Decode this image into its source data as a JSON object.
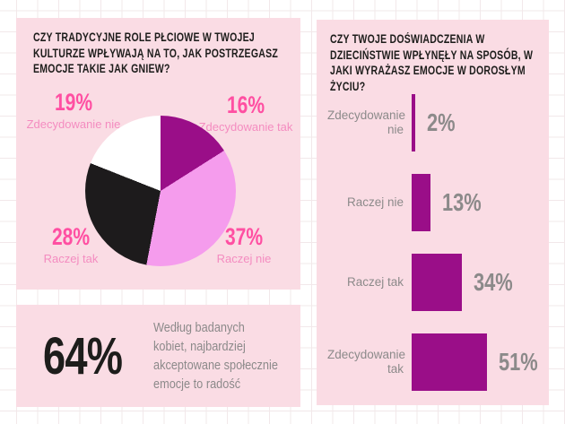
{
  "colors": {
    "canvas_bg": "#ffffff",
    "grid_line": "#f2e8ea",
    "panel_bg": "#fadce4",
    "accent_hot_pink": "#ff4fa2",
    "accent_light_pink_text": "#f48cc0",
    "accent_magenta": "#9a0e88",
    "pie_light_pink": "#f59ced",
    "pie_black": "#1d1b1c",
    "pie_white": "#ffffff",
    "gray_text": "#8c8a8a",
    "title_black": "#1d1d1b"
  },
  "left_panel": {
    "title": "CZY TRADYCYJNE ROLE PŁCIOWE W TWOJEJ KULTURZE WPŁYWAJĄ NA TO, JAK POSTRZEGASZ EMOCJE TAKIE JAK GNIEW?",
    "slices": [
      {
        "pct_label": "19%",
        "label": "Zdecydowanie nie"
      },
      {
        "pct_label": "16%",
        "label": "Zdecydowanie tak"
      },
      {
        "pct_label": "28%",
        "label": "Raczej tak"
      },
      {
        "pct_label": "37%",
        "label": "Raczej nie"
      }
    ]
  },
  "stat_panel": {
    "value": "64%",
    "text": "Według badanych kobiet, najbardziej akceptowane społecznie emocje to radość"
  },
  "right_panel": {
    "title": "CZY TWOJE DOŚWIADCZENIA W DZIECIŃSTWIE WPŁYNĘŁY NA SPOSÓB, W JAKI WYRAŻASZ EMOCJE W DOROSŁYM ŻYCIU?",
    "bars": [
      {
        "label": "Zdecydowanie nie",
        "value_label": "2%",
        "pct": 2
      },
      {
        "label": "Raczej nie",
        "value_label": "13%",
        "pct": 13
      },
      {
        "label": "Raczej tak",
        "value_label": "34%",
        "pct": 34
      },
      {
        "label": "Zdecydowanie tak",
        "value_label": "51%",
        "pct": 51
      }
    ]
  },
  "chart_data": [
    {
      "type": "pie",
      "title": "CZY TRADYCYJNE ROLE PŁCIOWE W TWOJEJ KULTURZE WPŁYWAJĄ NA TO, JAK POSTRZEGASZ EMOCJE TAKIE JAK GNIEW?",
      "labels": [
        "Zdecydowanie tak",
        "Raczej nie",
        "Raczej tak",
        "Zdecydowanie nie"
      ],
      "values": [
        16,
        37,
        28,
        19
      ],
      "colors": [
        "#9a0e88",
        "#f59ced",
        "#1d1b1c",
        "#ffffff"
      ],
      "start_angle_deg": 0,
      "direction": "clockwise",
      "legend_position": "around-corners"
    },
    {
      "type": "bar",
      "orientation": "horizontal",
      "title": "CZY TWOJE DOŚWIADCZENIA W DZIECIŃSTWIE WPŁYNĘŁY NA SPOSÓB, W JAKI WYRAŻASZ EMOCJE W DOROSŁYM ŻYCIU?",
      "categories": [
        "Zdecydowanie nie",
        "Raczej nie",
        "Raczej tak",
        "Zdecydowanie tak"
      ],
      "values": [
        2,
        13,
        34,
        51
      ],
      "value_labels": [
        "2%",
        "13%",
        "34%",
        "51%"
      ],
      "bar_color": "#9a0e88",
      "xlim": [
        0,
        60
      ],
      "grid": false
    }
  ]
}
